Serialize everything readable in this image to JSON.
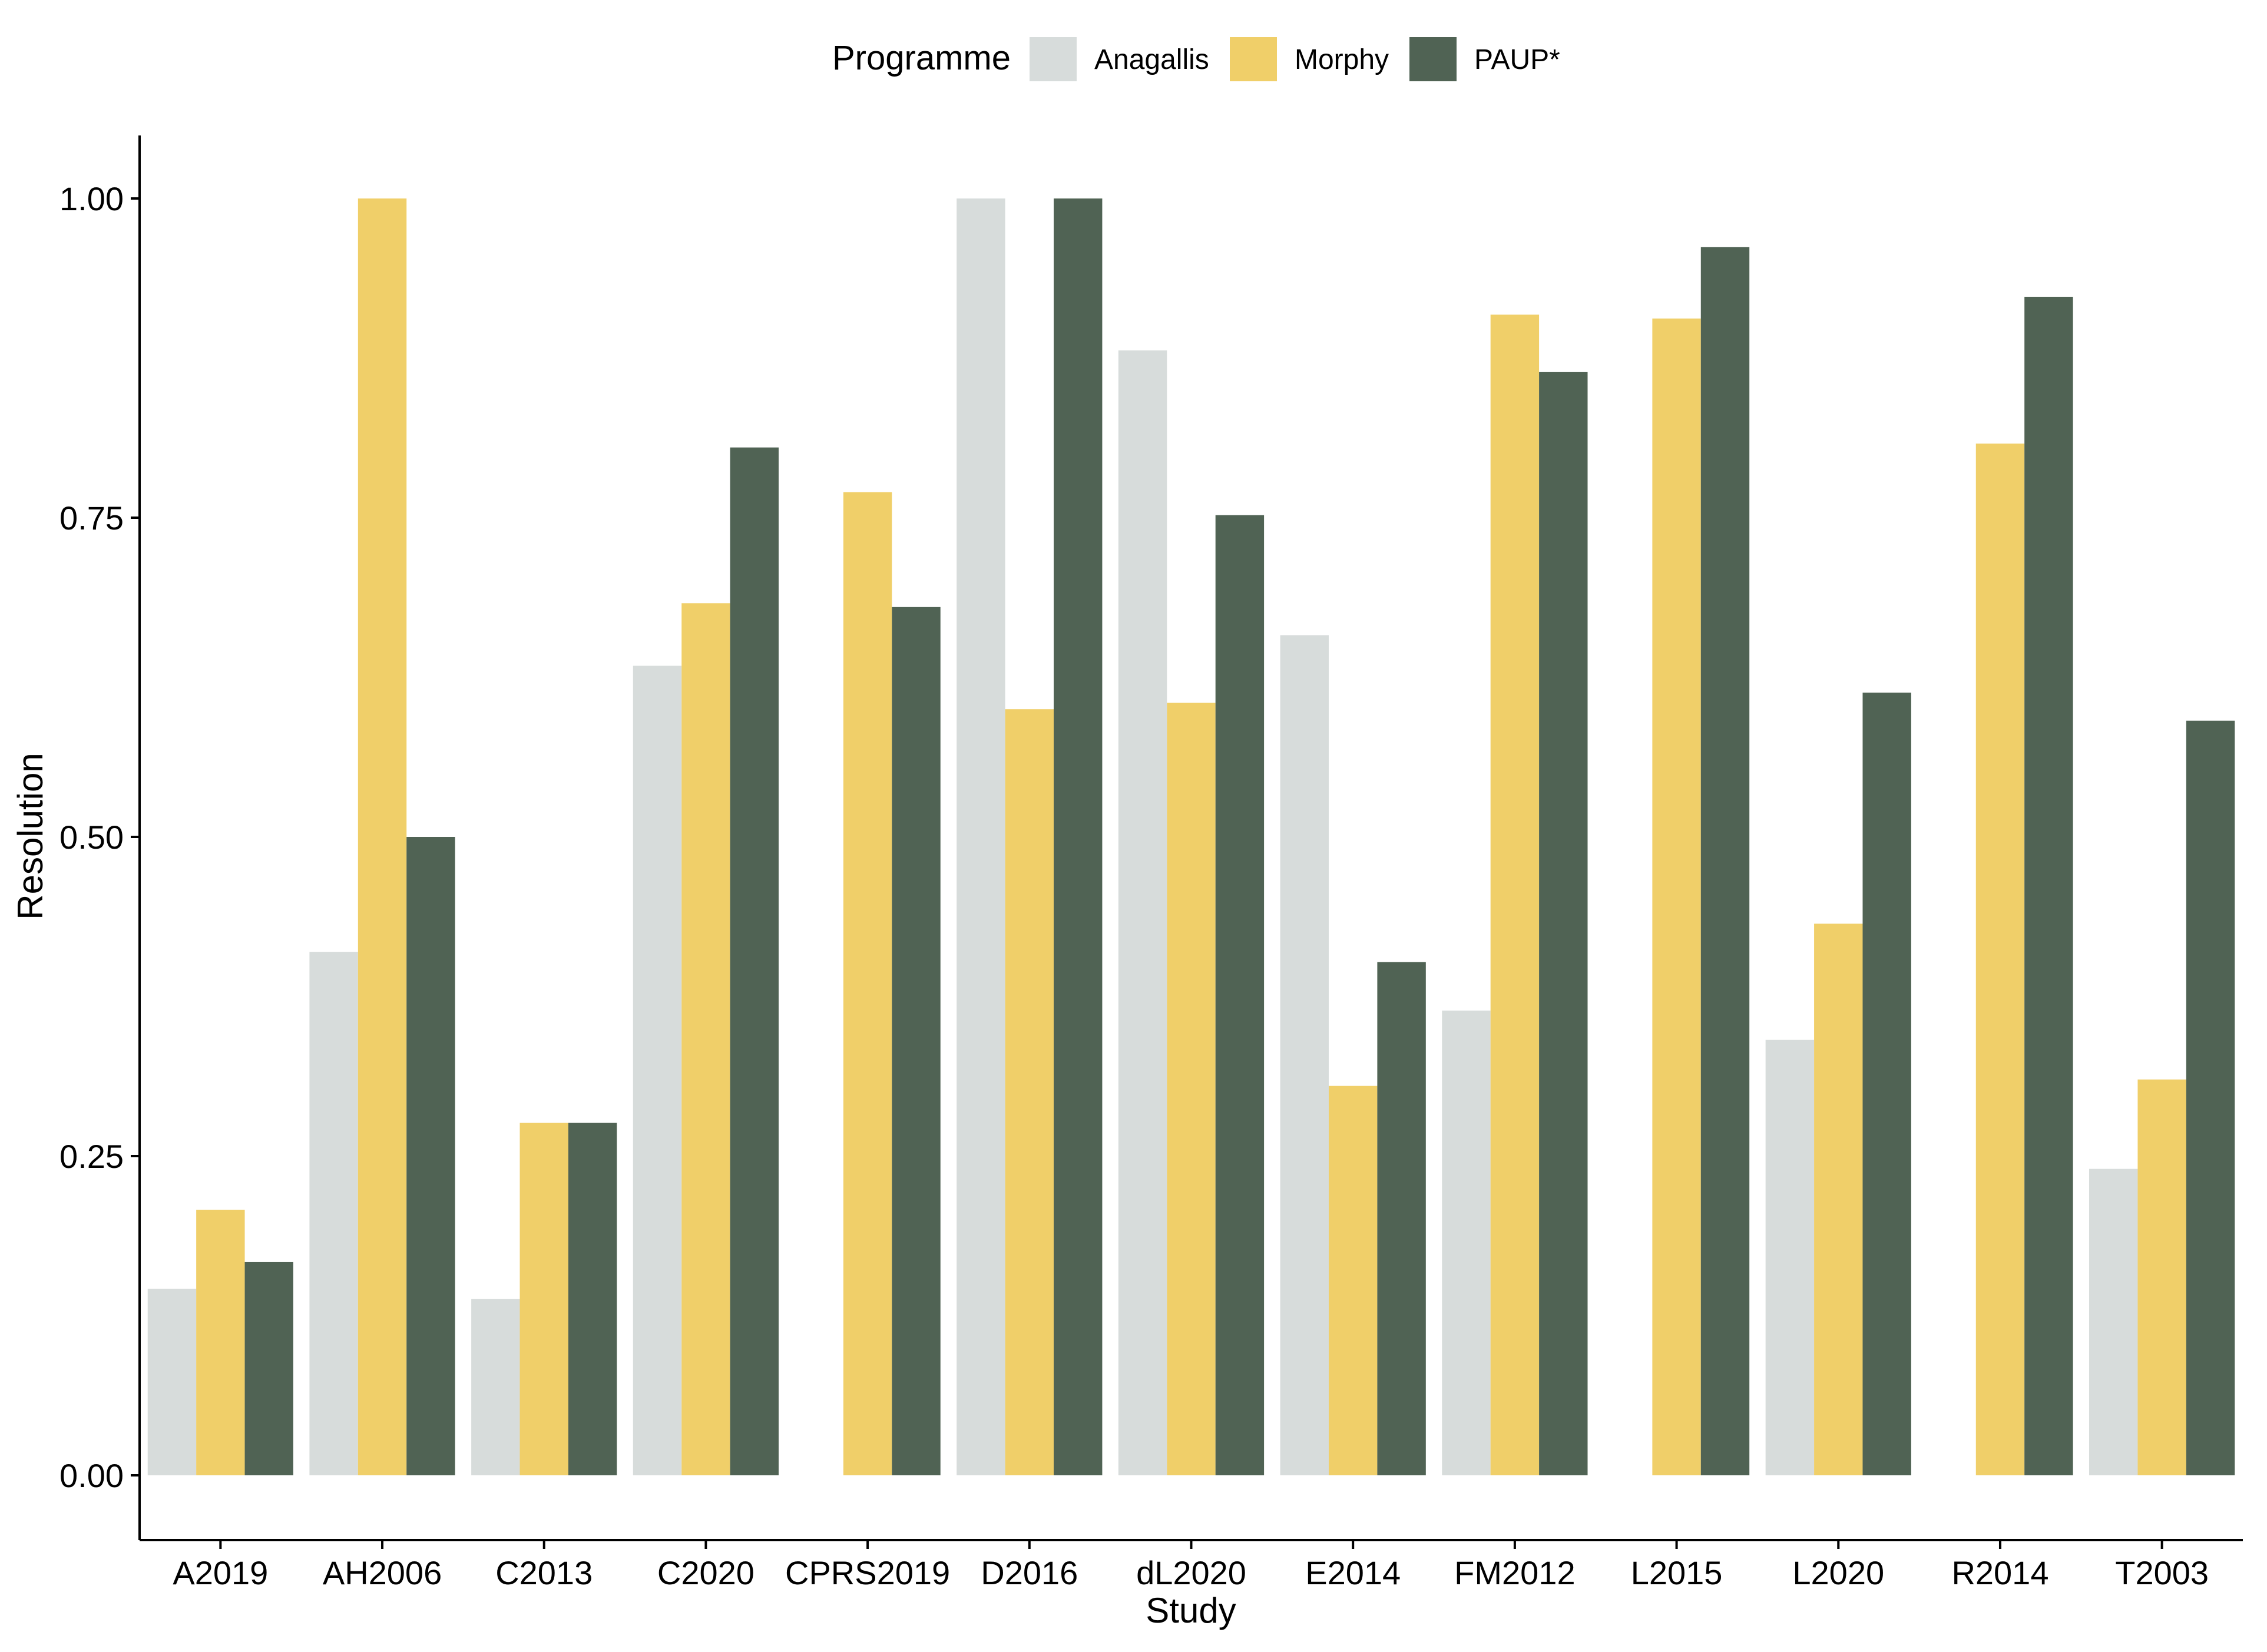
{
  "chart_data": {
    "type": "bar",
    "xlabel": "Study",
    "ylabel": "Resolution",
    "ylim": [
      -0.05,
      1.05
    ],
    "yticks": [
      "0.00",
      "0.25",
      "0.50",
      "0.75",
      "1.00"
    ],
    "grid": false,
    "legend": {
      "title": "Programme",
      "position": "top"
    },
    "categories": [
      "A2019",
      "AH2006",
      "C2013",
      "C2020",
      "CPRS2019",
      "D2016",
      "dL2020",
      "E2014",
      "FM2012",
      "L2015",
      "L2020",
      "R2014",
      "T2003"
    ],
    "series": [
      {
        "name": "Anagallis",
        "color": "#d7dcdb",
        "values": [
          0.146,
          0.41,
          0.138,
          0.634,
          null,
          1.0,
          0.881,
          0.658,
          0.364,
          null,
          0.341,
          null,
          0.24
        ]
      },
      {
        "name": "Morphy",
        "color": "#f0cf69",
        "values": [
          0.208,
          1.0,
          0.276,
          0.683,
          0.77,
          0.6,
          0.605,
          0.305,
          0.909,
          0.906,
          0.432,
          0.808,
          0.31
        ]
      },
      {
        "name": "PAUP*",
        "color": "#506354",
        "values": [
          0.167,
          0.5,
          0.276,
          0.805,
          0.68,
          1.0,
          0.752,
          0.402,
          0.864,
          0.962,
          0.613,
          0.923,
          0.591
        ]
      }
    ]
  }
}
